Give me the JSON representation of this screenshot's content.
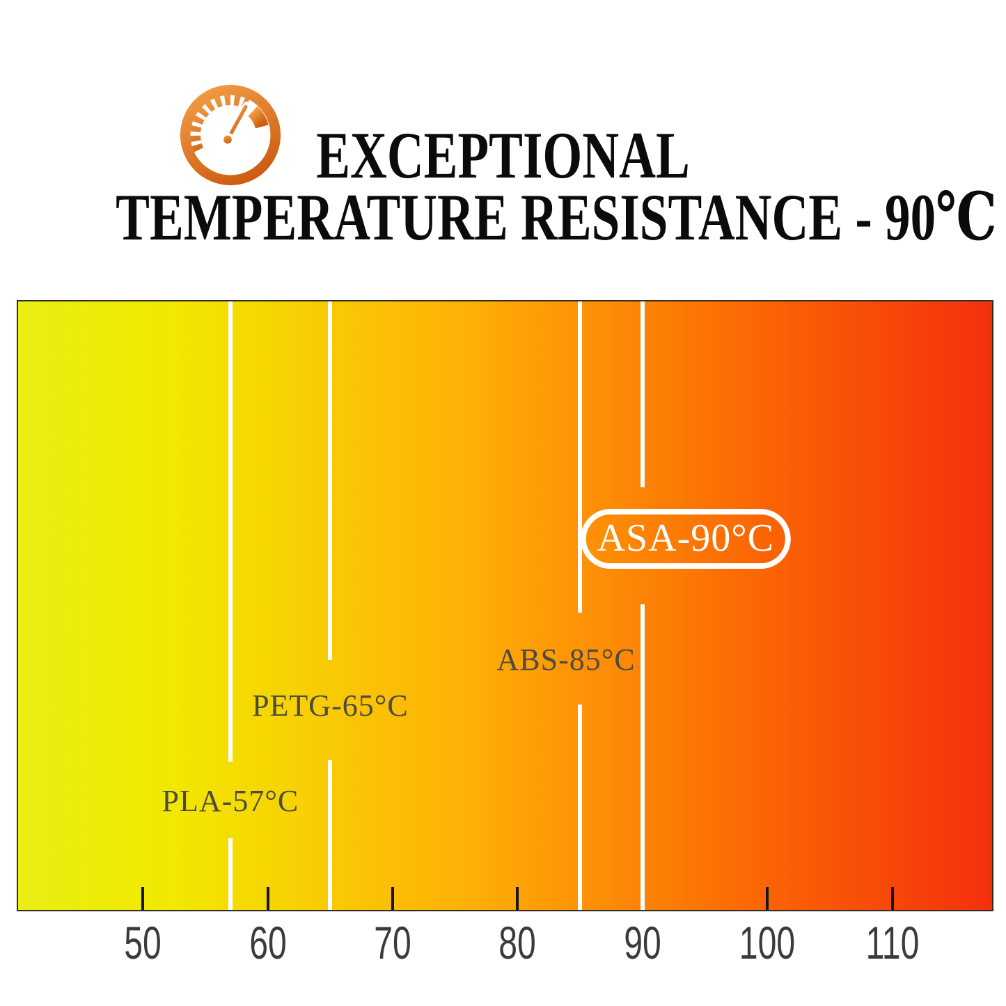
{
  "header": {
    "line1": "EXCEPTIONAL",
    "line2": "TEMPERATURE RESISTANCE - 90℃",
    "icon": "temperature-gauge-icon",
    "icon_color_start": "#f09a43",
    "icon_color_end": "#cd5c12",
    "text_color": "#0b0b0b"
  },
  "chart_data": {
    "type": "temperature-scale",
    "title": "EXCEPTIONAL TEMPERATURE RESISTANCE - 90℃",
    "axis": {
      "min": 40,
      "max": 118,
      "ticks": [
        50,
        60,
        70,
        80,
        90,
        100,
        110
      ],
      "tick_color": "#151515",
      "tick_label_color": "#3b3b3b"
    },
    "materials": [
      {
        "name": "PLA",
        "temp": 57,
        "label": "PLA-57°C",
        "highlighted": false
      },
      {
        "name": "PETG",
        "temp": 65,
        "label": "PETG-65°C",
        "highlighted": false
      },
      {
        "name": "ABS",
        "temp": 85,
        "label": "ABS-85°C",
        "highlighted": false
      },
      {
        "name": "ASA",
        "temp": 90,
        "label": "ASA-90°C",
        "highlighted": true
      }
    ],
    "gradient_stops": [
      {
        "pos": 0,
        "color": "#e9ee13"
      },
      {
        "pos": 16,
        "color": "#f2e800"
      },
      {
        "pos": 46,
        "color": "#ffb007"
      },
      {
        "pos": 76,
        "color": "#fb6604"
      },
      {
        "pos": 100,
        "color": "#f4300c"
      }
    ],
    "marker_line_color": "#ffffff",
    "material_label_color": "#4c4b41",
    "highlight_label_color": "#ffffff",
    "border_color": "#2f2d26",
    "grid": false,
    "legend": false
  }
}
